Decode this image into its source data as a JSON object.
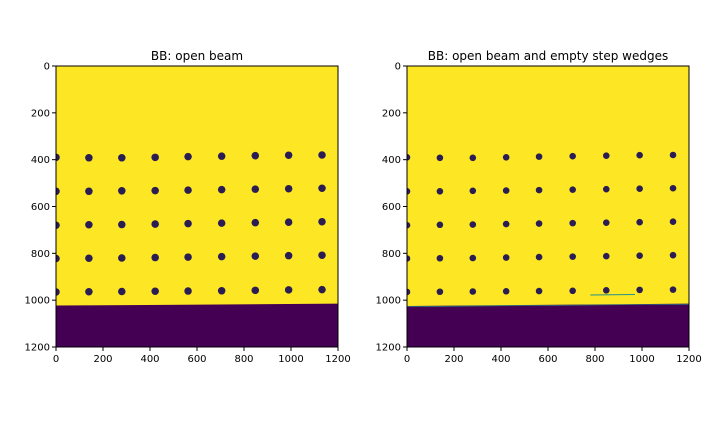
{
  "colors": {
    "beam": "#fde725",
    "background": "#440154",
    "dot": "#2a1d53",
    "edge": "#21918c"
  },
  "chart_data": [
    {
      "type": "heatmap",
      "title": "BB: open beam",
      "xlim": [
        0,
        1200
      ],
      "ylim": [
        1200,
        0
      ],
      "xticks": [
        "0",
        "200",
        "400",
        "600",
        "800",
        "1000",
        "1200"
      ],
      "yticks": [
        "0",
        "200",
        "400",
        "600",
        "800",
        "1000",
        "1200"
      ],
      "boundary_left": 1023,
      "boundary_right": 1015,
      "dot_cols": [
        0,
        140,
        280,
        422,
        562,
        705,
        848,
        990,
        1132
      ],
      "dot_rows": [
        [
          390,
          392,
          392,
          390,
          387,
          385,
          383,
          381,
          380
        ],
        [
          535,
          535,
          533,
          532,
          530,
          528,
          526,
          524,
          522
        ],
        [
          680,
          678,
          677,
          675,
          673,
          671,
          669,
          667,
          665
        ],
        [
          822,
          821,
          820,
          818,
          816,
          814,
          812,
          810,
          808
        ],
        [
          965,
          964,
          963,
          962,
          961,
          960,
          958,
          956,
          955
        ]
      ],
      "dot_radius": 16
    },
    {
      "type": "heatmap",
      "title": "BB: open beam and empty step wedges",
      "xlim": [
        0,
        1200
      ],
      "ylim": [
        1200,
        0
      ],
      "xticks": [
        "0",
        "200",
        "400",
        "600",
        "800",
        "1000",
        "1200"
      ],
      "yticks": [
        "0",
        "200",
        "400",
        "600",
        "800",
        "1000",
        "1200"
      ],
      "boundary_left": 1025,
      "boundary_right": 1015,
      "dot_cols": [
        0,
        140,
        280,
        422,
        562,
        705,
        848,
        990,
        1132
      ],
      "dot_rows": [
        [
          390,
          392,
          392,
          390,
          387,
          385,
          383,
          381,
          380
        ],
        [
          535,
          535,
          533,
          532,
          530,
          528,
          526,
          524,
          522
        ],
        [
          680,
          678,
          677,
          675,
          673,
          671,
          669,
          667,
          665
        ],
        [
          822,
          821,
          820,
          818,
          816,
          814,
          812,
          810,
          808
        ],
        [
          965,
          964,
          963,
          962,
          961,
          960,
          958,
          956,
          955
        ]
      ],
      "dot_radius": 14
    }
  ]
}
